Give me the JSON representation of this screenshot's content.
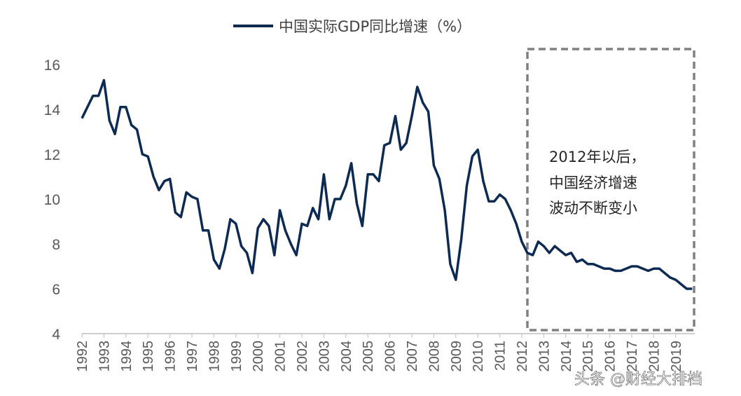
{
  "chart_data": {
    "type": "line",
    "title": "",
    "xlabel": "",
    "ylabel": "",
    "ylim": [
      4,
      16
    ],
    "yticks": [
      "4",
      "6",
      "8",
      "10",
      "12",
      "14",
      "16"
    ],
    "xticks": [
      "1992",
      "1993",
      "1994",
      "1995",
      "1996",
      "1997",
      "1998",
      "1999",
      "2000",
      "2001",
      "2002",
      "2003",
      "2004",
      "2005",
      "2006",
      "2007",
      "2008",
      "2009",
      "2010",
      "2011",
      "2012",
      "2013",
      "2014",
      "2015",
      "2016",
      "2017",
      "2018",
      "2019"
    ],
    "x_start": "1992Q1",
    "x_frequency": "quarterly",
    "grid": false,
    "legend_position": "top-center",
    "series": [
      {
        "name": "中国实际GDP同比增速（%）",
        "color": "#0d2a52",
        "values": [
          13.6,
          14.1,
          14.6,
          14.6,
          15.3,
          13.5,
          12.9,
          14.1,
          14.1,
          13.3,
          13.1,
          12.0,
          11.9,
          11.0,
          10.4,
          10.8,
          10.9,
          9.4,
          9.2,
          10.3,
          10.1,
          10.0,
          8.6,
          8.6,
          7.3,
          6.9,
          7.8,
          9.1,
          8.9,
          7.9,
          7.6,
          6.7,
          8.7,
          9.1,
          8.8,
          7.5,
          9.5,
          8.6,
          8.0,
          7.5,
          8.9,
          8.8,
          9.6,
          9.1,
          11.1,
          9.1,
          10.0,
          10.0,
          10.6,
          11.6,
          9.8,
          8.8,
          11.1,
          11.1,
          10.8,
          12.4,
          12.5,
          13.7,
          12.2,
          12.5,
          13.7,
          15.0,
          14.3,
          13.9,
          11.5,
          10.9,
          9.5,
          7.1,
          6.4,
          8.2,
          10.6,
          11.9,
          12.2,
          10.8,
          9.9,
          9.9,
          10.2,
          10.0,
          9.5,
          8.9,
          8.1,
          7.6,
          7.5,
          8.1,
          7.9,
          7.6,
          7.9,
          7.7,
          7.5,
          7.6,
          7.2,
          7.3,
          7.1,
          7.1,
          7.0,
          6.9,
          6.9,
          6.8,
          6.8,
          6.9,
          7.0,
          7.0,
          6.9,
          6.8,
          6.9,
          6.9,
          6.7,
          6.5,
          6.4,
          6.2,
          6.0,
          6.0
        ]
      }
    ],
    "annotation": {
      "lines": [
        "2012年以后，",
        "中国经济增速",
        "波动不断变小"
      ],
      "box_style": "dashed",
      "box_color": "#808080",
      "box_from": "2012Q3"
    }
  },
  "watermark": "头条 @财经大排档"
}
